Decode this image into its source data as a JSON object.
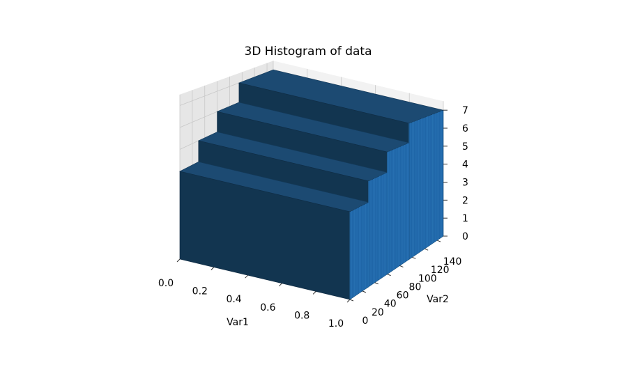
{
  "chart_data": {
    "type": "bar3d",
    "title": "3D Histogram of data",
    "xlabel": "Var1",
    "ylabel": "Var2",
    "zlabel": "",
    "xlim": [
      0.0,
      1.0
    ],
    "ylim": [
      0,
      150
    ],
    "zlim": [
      0,
      7.5
    ],
    "x_ticks": [
      "0.0",
      "0.2",
      "0.4",
      "0.6",
      "0.8",
      "1.0"
    ],
    "y_ticks": [
      "0",
      "20",
      "40",
      "60",
      "80",
      "100",
      "120",
      "140"
    ],
    "z_ticks": [
      "0",
      "1",
      "2",
      "3",
      "4",
      "5",
      "6",
      "7"
    ],
    "y_step_levels": [
      {
        "y_start": 0,
        "y_end": 30,
        "z": 4.0
      },
      {
        "y_start": 30,
        "y_end": 60,
        "z": 5.0
      },
      {
        "y_start": 60,
        "y_end": 95,
        "z": 6.0
      },
      {
        "y_start": 95,
        "y_end": 150,
        "z": 7.0
      }
    ],
    "grid": true,
    "colors": {
      "bar_top": "#1c4a72",
      "bar_front": "#123550",
      "bar_side": "#1f66a8",
      "pane_back": "#f2f2f2",
      "pane_side": "#e6e6e6",
      "pane_floor": "#ebebeb",
      "grid": "#c8c8c8"
    }
  }
}
